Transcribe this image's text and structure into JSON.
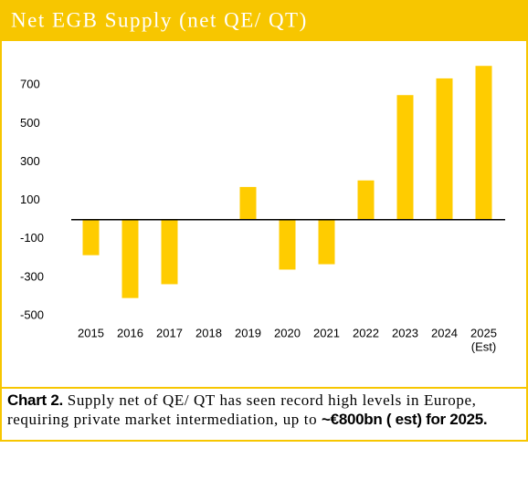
{
  "chart_data": {
    "type": "bar",
    "title": "Net EGB Supply (net QE/ QT)",
    "categories": [
      "2015",
      "2016",
      "2017",
      "2018",
      "2019",
      "2020",
      "2021",
      "2022",
      "2023",
      "2024",
      "2025"
    ],
    "category_note": "(Est)",
    "values": [
      -185,
      -408,
      -336,
      0,
      170,
      -260,
      -232,
      204,
      648,
      735,
      800
    ],
    "color": "#ffcc00",
    "ylim": [
      -500,
      820
    ],
    "yticks": [
      -500,
      -300,
      -100,
      100,
      300,
      500,
      700
    ],
    "grid": false
  },
  "caption": {
    "label": "Chart 2.",
    "text": "Supply net of QE/ QT has seen record high levels in Europe, requiring private market intermediation, up to ",
    "highlight": "~€800bn ( est) for 2025."
  }
}
